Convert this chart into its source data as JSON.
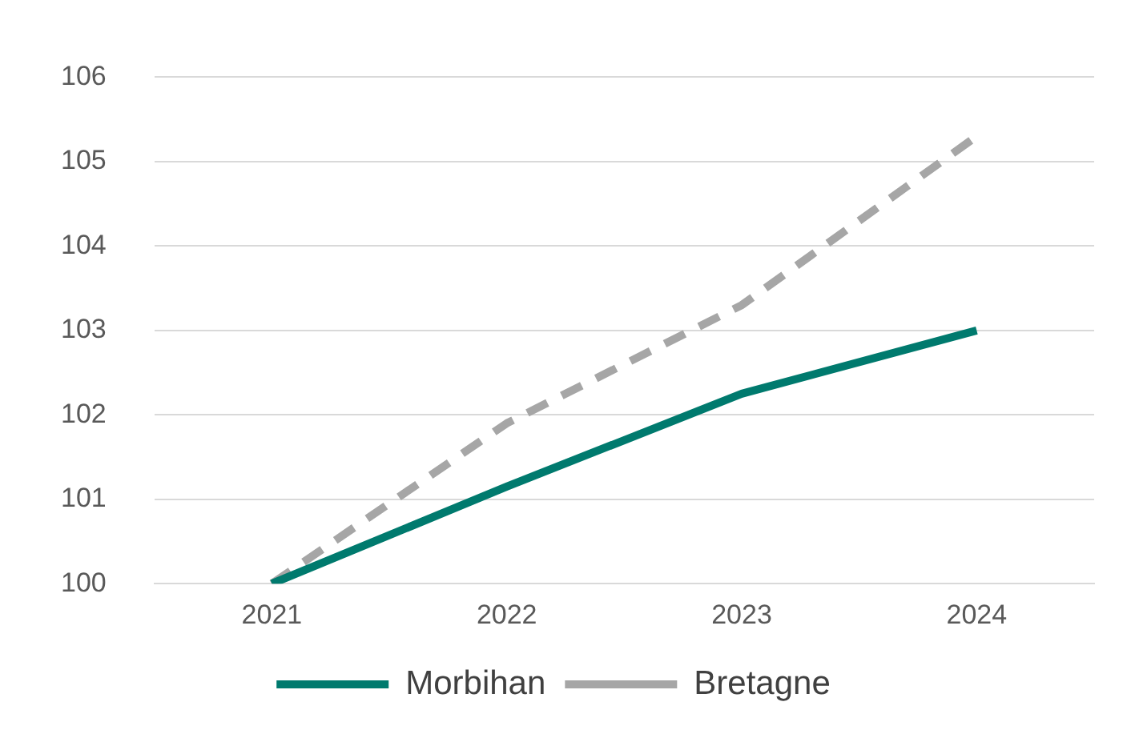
{
  "chart_data": {
    "type": "line",
    "categories": [
      "2021",
      "2022",
      "2023",
      "2024"
    ],
    "series": [
      {
        "name": "Morbihan",
        "color": "#007a6e",
        "values": [
          100,
          101.15,
          102.25,
          103.0
        ],
        "line_style": "solid"
      },
      {
        "name": "Bretagne",
        "color": "#a6a6a6",
        "values": [
          100,
          101.9,
          103.3,
          105.3
        ],
        "line_style": "dashed"
      }
    ],
    "ylim": [
      100,
      106
    ],
    "yticks": [
      100,
      101,
      102,
      103,
      104,
      105,
      106
    ],
    "grid": "y",
    "legend": "bottom",
    "marker": "none"
  }
}
